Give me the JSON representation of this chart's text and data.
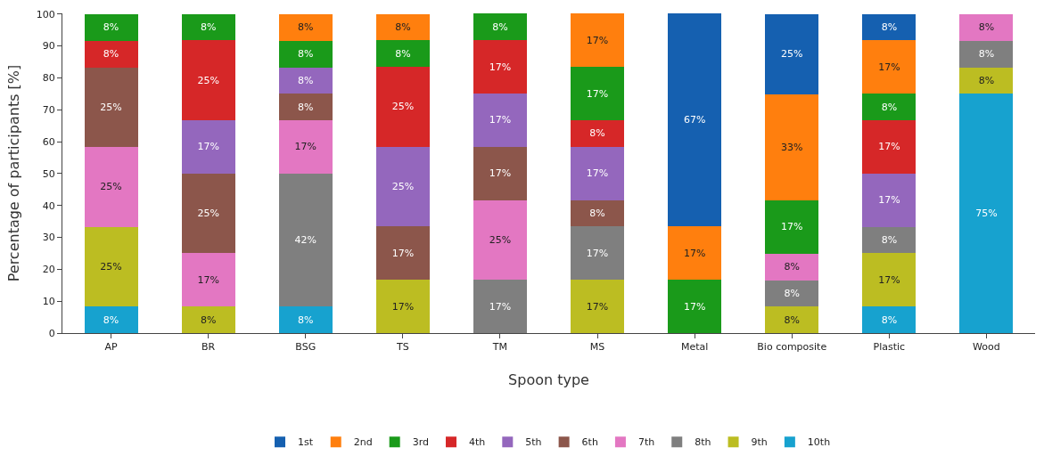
{
  "chart_data": {
    "type": "bar",
    "stacked": true,
    "xlabel": "Spoon type",
    "ylabel": "Percentage of participants [%]",
    "categories": [
      "AP",
      "BR",
      "BSG",
      "TS",
      "TM",
      "MS",
      "Metal",
      "Bio composite",
      "Plastic",
      "Wood"
    ],
    "ylim": [
      0,
      100
    ],
    "yticks": [
      0,
      10,
      20,
      30,
      40,
      50,
      60,
      70,
      80,
      90,
      100
    ],
    "grid": false,
    "legend": "bottom",
    "series": [
      {
        "name": "10th",
        "color": "#17a2cf",
        "values": [
          8.3,
          null,
          8.3,
          null,
          null,
          null,
          null,
          null,
          8.3,
          75
        ],
        "value_labels": [
          "8%",
          null,
          "8%",
          null,
          null,
          null,
          null,
          null,
          "8%",
          "75%"
        ]
      },
      {
        "name": "9th",
        "color": "#bcbd22",
        "values": [
          25,
          8.3,
          null,
          16.7,
          null,
          16.7,
          null,
          8.3,
          16.7,
          8.3
        ],
        "value_labels": [
          "25%",
          "8%",
          null,
          "17%",
          null,
          "17%",
          null,
          "8%",
          "17%",
          "8%"
        ]
      },
      {
        "name": "8th",
        "color": "#7f7f7f",
        "values": [
          null,
          null,
          41.7,
          null,
          16.7,
          16.7,
          null,
          8.3,
          8.3,
          8.3
        ],
        "value_labels": [
          null,
          null,
          "42%",
          null,
          "17%",
          "17%",
          null,
          "8%",
          "8%",
          "8%"
        ]
      },
      {
        "name": "7th",
        "color": "#e377c2",
        "values": [
          25,
          16.7,
          16.7,
          null,
          25,
          null,
          null,
          8.3,
          null,
          8.3
        ],
        "value_labels": [
          "25%",
          "17%",
          "17%",
          null,
          "25%",
          null,
          null,
          "8%",
          null,
          "8%"
        ]
      },
      {
        "name": "6th",
        "color": "#8c564b",
        "values": [
          25,
          25,
          8.3,
          16.7,
          16.7,
          8.3,
          null,
          null,
          null,
          null
        ],
        "value_labels": [
          "25%",
          "25%",
          "8%",
          "17%",
          "17%",
          "8%",
          null,
          null,
          null,
          null
        ]
      },
      {
        "name": "5th",
        "color": "#9467bd",
        "values": [
          null,
          16.7,
          8.3,
          25,
          16.7,
          16.7,
          null,
          null,
          16.7,
          null
        ],
        "value_labels": [
          null,
          "17%",
          "8%",
          "25%",
          "17%",
          "17%",
          null,
          null,
          "17%",
          null
        ]
      },
      {
        "name": "4th",
        "color": "#d62728",
        "values": [
          8.3,
          25,
          null,
          25,
          16.7,
          8.3,
          null,
          null,
          16.7,
          null
        ],
        "value_labels": [
          "8%",
          "25%",
          null,
          "25%",
          "17%",
          "8%",
          null,
          null,
          "17%",
          null
        ]
      },
      {
        "name": "3rd",
        "color": "#1a9a1a",
        "values": [
          8.3,
          8.3,
          8.3,
          8.3,
          8.3,
          16.7,
          16.7,
          16.7,
          8.3,
          null
        ],
        "value_labels": [
          "8%",
          "8%",
          "8%",
          "8%",
          "8%",
          "17%",
          "17%",
          "17%",
          "8%",
          null
        ]
      },
      {
        "name": "2nd",
        "color": "#ff7f0e",
        "values": [
          null,
          null,
          8.3,
          8.3,
          null,
          16.7,
          16.7,
          33.3,
          16.7,
          null
        ],
        "value_labels": [
          null,
          null,
          "8%",
          "8%",
          null,
          "17%",
          "17%",
          "33%",
          "17%",
          null
        ]
      },
      {
        "name": "1st",
        "color": "#1560b0",
        "values": [
          null,
          null,
          null,
          null,
          null,
          null,
          66.7,
          25,
          8.3,
          null
        ],
        "value_labels": [
          null,
          null,
          null,
          null,
          null,
          null,
          "67%",
          "25%",
          "8%",
          null
        ]
      }
    ]
  }
}
